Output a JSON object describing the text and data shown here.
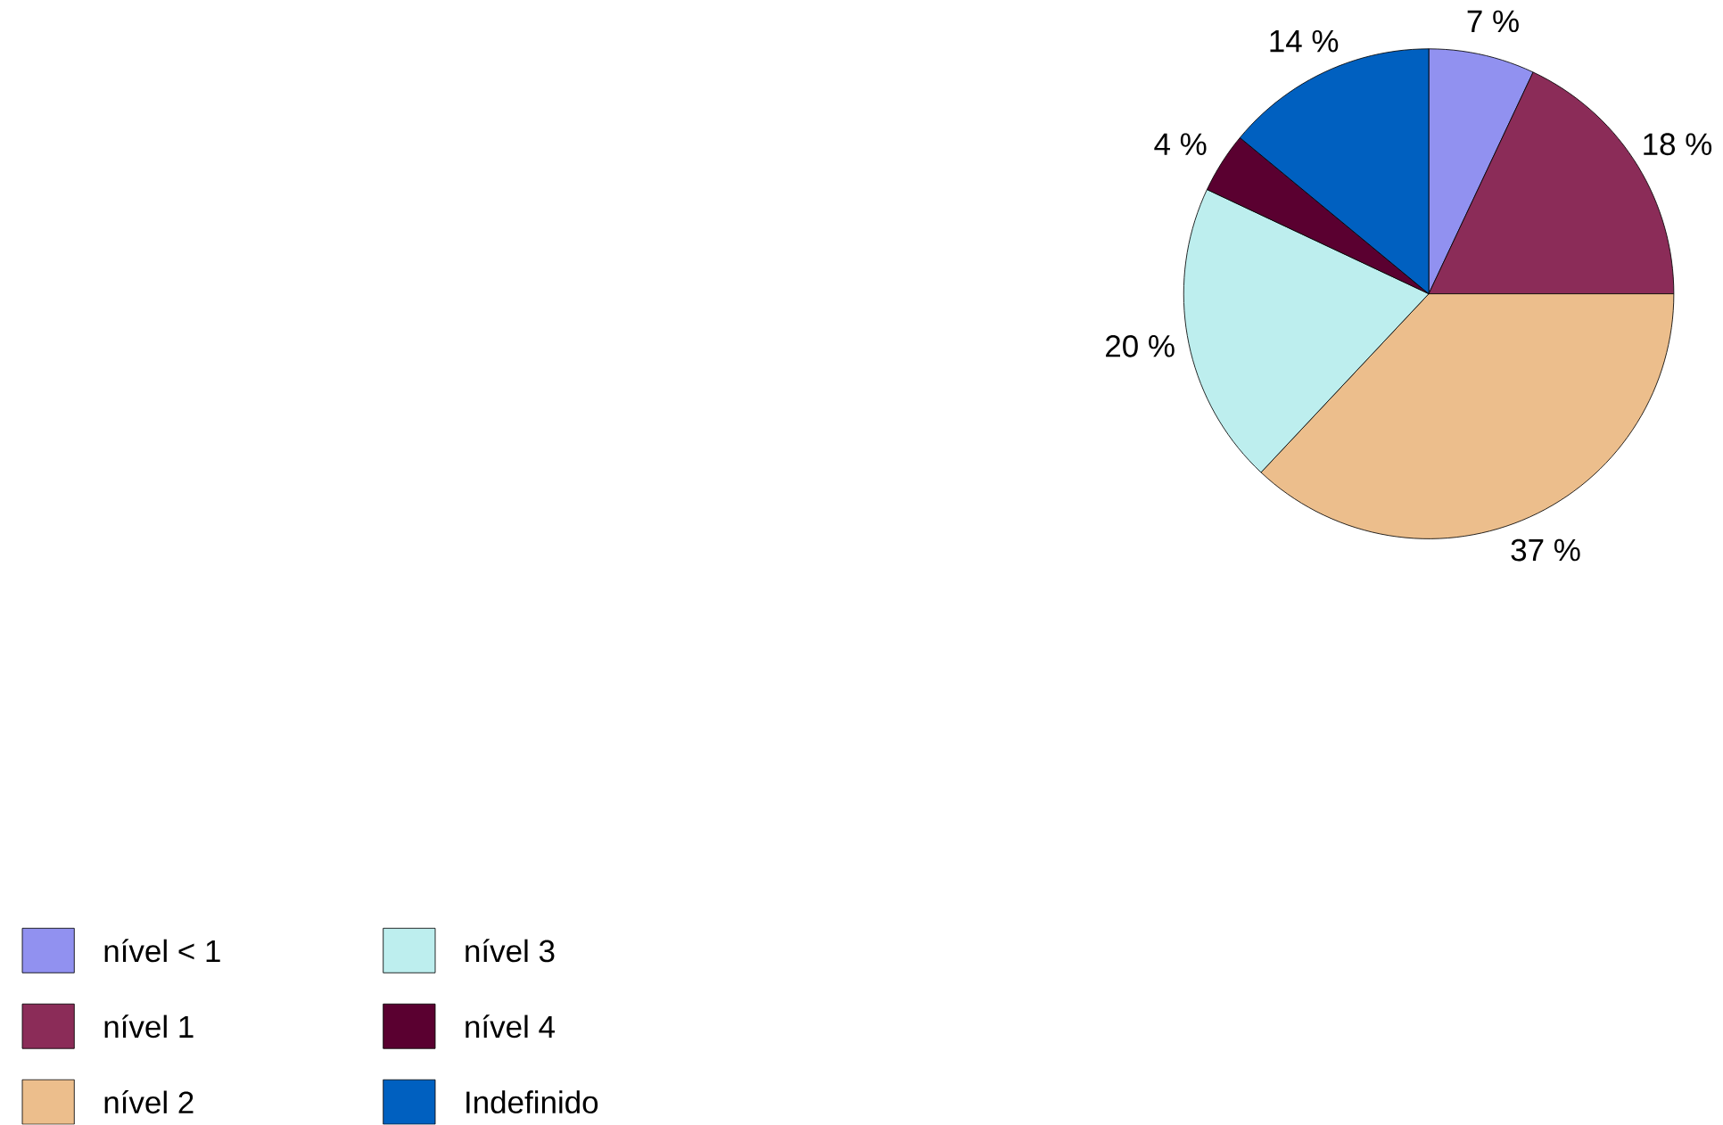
{
  "chart_data": {
    "type": "pie",
    "categories": [
      "nível < 1",
      "nível 1",
      "nível 2",
      "nível 3",
      "nível 4",
      "Indefinido"
    ],
    "values": [
      7,
      18,
      37,
      20,
      4,
      14
    ],
    "value_labels": [
      "7 %",
      "18 %",
      "37 %",
      "20 %",
      "4 %",
      "14 %"
    ],
    "colors": [
      "#9191f0",
      "#8b2c58",
      "#ecbe8c",
      "#bdeeee",
      "#5a0030",
      "#0060c0"
    ],
    "legend": "bottom left"
  }
}
